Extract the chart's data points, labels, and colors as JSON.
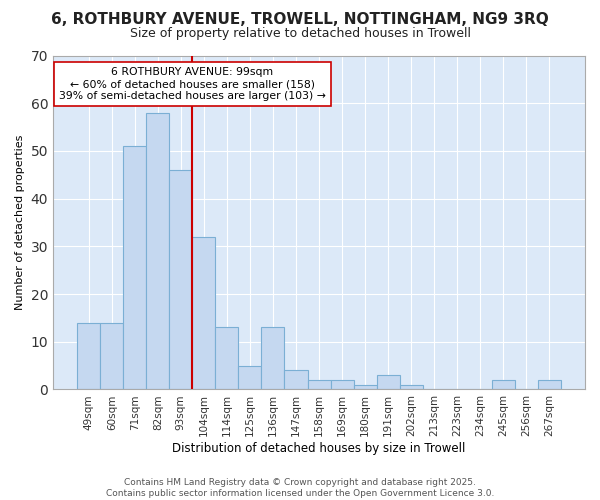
{
  "title": "6, ROTHBURY AVENUE, TROWELL, NOTTINGHAM, NG9 3RQ",
  "subtitle": "Size of property relative to detached houses in Trowell",
  "xlabel": "Distribution of detached houses by size in Trowell",
  "ylabel": "Number of detached properties",
  "categories": [
    "49sqm",
    "60sqm",
    "71sqm",
    "82sqm",
    "93sqm",
    "104sqm",
    "114sqm",
    "125sqm",
    "136sqm",
    "147sqm",
    "158sqm",
    "169sqm",
    "180sqm",
    "191sqm",
    "202sqm",
    "213sqm",
    "223sqm",
    "234sqm",
    "245sqm",
    "256sqm",
    "267sqm"
  ],
  "values": [
    14,
    14,
    51,
    58,
    46,
    32,
    13,
    5,
    13,
    4,
    2,
    2,
    1,
    3,
    1,
    0,
    0,
    0,
    2,
    0,
    2
  ],
  "bar_color": "#c5d8f0",
  "bar_edge_color": "#7bafd4",
  "bar_width": 1.0,
  "red_line_x": 4.5,
  "red_line_color": "#cc0000",
  "annotation_text": "6 ROTHBURY AVENUE: 99sqm\n← 60% of detached houses are smaller (158)\n39% of semi-detached houses are larger (103) →",
  "annotation_box_color": "#ffffff",
  "annotation_box_edge": "#cc0000",
  "ylim": [
    0,
    70
  ],
  "yticks": [
    0,
    10,
    20,
    30,
    40,
    50,
    60,
    70
  ],
  "plot_bg_color": "#dce9f8",
  "fig_bg_color": "#ffffff",
  "grid_color": "#ffffff",
  "footer": "Contains HM Land Registry data © Crown copyright and database right 2025.\nContains public sector information licensed under the Open Government Licence 3.0.",
  "title_fontsize": 11,
  "subtitle_fontsize": 9,
  "ylabel_fontsize": 8,
  "xlabel_fontsize": 8.5,
  "tick_fontsize": 7.5,
  "annotation_fontsize": 7.8,
  "footer_fontsize": 6.5
}
